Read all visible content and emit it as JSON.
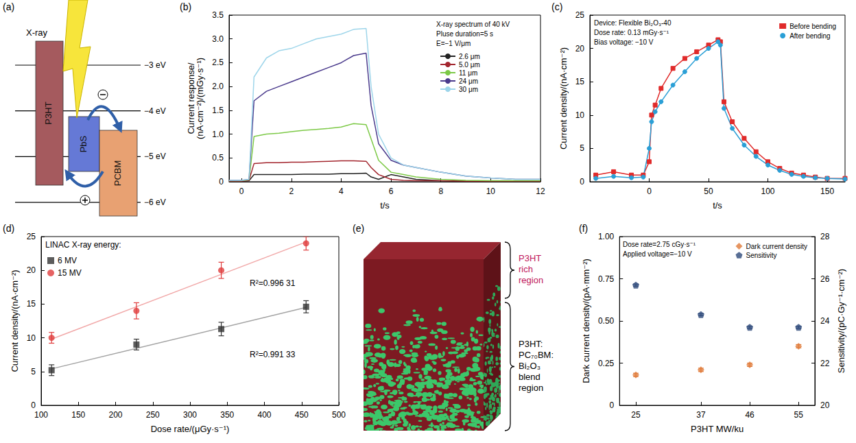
{
  "panel_labels": [
    "(a)",
    "(b)",
    "(c)",
    "(d)",
    "(e)",
    "(f)"
  ],
  "diagram_a": {
    "annotation": "X-ray",
    "materials": [
      "P3HT",
      "PbS",
      "PCBM"
    ],
    "levels": [
      {
        "value": -3,
        "label": "−3 eV"
      },
      {
        "value": -4,
        "label": "−4 eV"
      },
      {
        "value": -5,
        "label": "−5 eV"
      },
      {
        "value": -6,
        "label": "−6 eV"
      }
    ]
  },
  "diagram_e": {
    "regions": [
      "P3HT rich region",
      "P3HT:PC₇₀BM:Bi₂O₃ blend region"
    ]
  },
  "chart_data": [
    {
      "type": "line",
      "x_label": "t/s",
      "y_label": "Current response/(nA·cm⁻²)/(mGy·s⁻¹)",
      "annotations": [
        "X-ray spectrum of 40 kV",
        "Pluse duration=5 s",
        "E=−1 V/μm"
      ],
      "x": [
        -0.5,
        0,
        0.3,
        0.5,
        1,
        1.5,
        2,
        2.5,
        3,
        3.5,
        4,
        4.5,
        5,
        5.2,
        5.5,
        6,
        6.5,
        7,
        8,
        9,
        10,
        11,
        12
      ],
      "series": [
        {
          "name": "2.6 μm",
          "color": "#222222",
          "values": [
            0.01,
            0.01,
            0.02,
            0.15,
            0.15,
            0.15,
            0.15,
            0.16,
            0.16,
            0.16,
            0.17,
            0.17,
            0.18,
            0.1,
            0.05,
            0.15,
            0.1,
            0.05,
            0.02,
            0.01,
            0.01,
            0.01,
            0.01
          ]
        },
        {
          "name": "5.0 μm",
          "color": "#a3262e",
          "values": [
            0.01,
            0.01,
            0.03,
            0.38,
            0.4,
            0.4,
            0.41,
            0.41,
            0.42,
            0.43,
            0.44,
            0.44,
            0.43,
            0.3,
            0.15,
            0.05,
            0.03,
            0.02,
            0.02,
            0.01,
            0.01,
            0.01,
            0.01
          ]
        },
        {
          "name": "11 μm",
          "color": "#7cc946",
          "values": [
            0.02,
            0.02,
            0.04,
            0.95,
            1.0,
            1.02,
            1.05,
            1.08,
            1.1,
            1.12,
            1.15,
            1.22,
            1.2,
            0.9,
            0.45,
            0.2,
            0.15,
            0.1,
            0.05,
            0.03,
            0.02,
            0.02,
            0.02
          ]
        },
        {
          "name": "24 μm",
          "color": "#4a3a8c",
          "values": [
            0.03,
            0.03,
            0.05,
            1.7,
            1.9,
            2.0,
            2.1,
            2.2,
            2.3,
            2.4,
            2.5,
            2.65,
            2.7,
            1.6,
            0.8,
            0.45,
            0.35,
            0.3,
            0.2,
            0.12,
            0.08,
            0.05,
            0.05
          ]
        },
        {
          "name": "30 μm",
          "color": "#9dd5ea",
          "values": [
            0.03,
            0.03,
            0.05,
            2.2,
            2.6,
            2.75,
            2.8,
            2.9,
            3.0,
            3.05,
            3.1,
            3.2,
            3.22,
            2.0,
            1.0,
            0.5,
            0.35,
            0.3,
            0.2,
            0.12,
            0.08,
            0.05,
            0.05
          ]
        }
      ],
      "xlim": [
        -0.5,
        12
      ],
      "xticks": [
        0,
        2,
        4,
        6,
        8,
        10,
        12
      ],
      "ylim": [
        0,
        3.5
      ],
      "yticks": [
        0,
        0.5,
        {
          "value": 1,
          "label": "1.0"
        },
        1.5,
        {
          "value": 2,
          "label": "2.0"
        },
        2.5,
        {
          "value": 3,
          "label": "3.0"
        },
        3.5
      ],
      "legend": "upper right",
      "grid": false
    },
    {
      "type": "line",
      "x_label": "t/s",
      "y_label": "Current density/(nA·cm⁻²)",
      "annotations": [
        "Device: Flexible Bi₂O₃-40",
        "Dose rate: 0.13 mGy·s⁻¹",
        "Bias voltage: −10 V"
      ],
      "x": [
        -45,
        -30,
        -15,
        -5,
        0,
        2,
        5,
        10,
        20,
        30,
        40,
        50,
        58,
        60,
        63,
        70,
        80,
        90,
        100,
        110,
        120,
        130,
        140,
        150,
        165
      ],
      "series": [
        {
          "name": "Before bending",
          "color": "#e02a2a",
          "marker": "square",
          "values": [
            1,
            1.5,
            1,
            1,
            3,
            10,
            11.5,
            14,
            17,
            18.5,
            19.5,
            20.5,
            21.3,
            21,
            12,
            9,
            6.5,
            4.5,
            3,
            2,
            1.3,
            1,
            0.7,
            0.5,
            0.5
          ]
        },
        {
          "name": "After bending",
          "color": "#2a9fd6",
          "marker": "circle",
          "values": [
            0.5,
            0.8,
            0.6,
            0.7,
            5,
            9,
            10.5,
            12,
            14.5,
            16.5,
            18.5,
            20,
            21,
            20.5,
            11,
            8,
            5.5,
            3.8,
            2.5,
            1.7,
            1.1,
            0.8,
            0.6,
            0.5,
            0.4
          ]
        }
      ],
      "xlim": [
        -50,
        165
      ],
      "xticks": [
        0,
        50,
        100,
        150
      ],
      "ylim": [
        0,
        25
      ],
      "yticks": [
        0,
        5,
        10,
        15,
        20,
        25
      ],
      "legend": "upper right",
      "grid": false
    },
    {
      "type": "scatter",
      "x_label": "Dose rate/(μGy·s⁻¹)",
      "y_label": "Current density/(nA·cm⁻²)",
      "legend_title": "LINAC X-ray energy:",
      "x": [
        114,
        228,
        342,
        456
      ],
      "series": [
        {
          "name": "6 MV",
          "color": "#333333",
          "marker": "square",
          "values": [
            5.2,
            9,
            11.3,
            14.6
          ],
          "errors": [
            0.8,
            0.8,
            1.0,
            0.9
          ],
          "fit": {
            "x": [
              114,
              456
            ],
            "values": [
              5.4,
              14.5
            ]
          },
          "fit_label": "R²=0.991 33"
        },
        {
          "name": "15 MV",
          "color": "#e03c3c",
          "marker": "circle",
          "values": [
            10,
            14,
            20,
            24
          ],
          "errors": [
            0.8,
            1.2,
            1.2,
            1.0
          ],
          "fit": {
            "x": [
              114,
              456
            ],
            "values": [
              9.8,
              24.2
            ]
          },
          "fit_label": "R²=0.996 31"
        }
      ],
      "xlim": [
        100,
        500
      ],
      "xticks": [
        100,
        150,
        200,
        250,
        300,
        350,
        400,
        450,
        500
      ],
      "ylim": [
        0,
        25
      ],
      "yticks": [
        0,
        5,
        10,
        15,
        20,
        25
      ],
      "legend": "upper left",
      "grid": false
    },
    {
      "type": "scatter",
      "x_label": "P3HT MW/ku",
      "y_label": "Dark current density/(pA·mm⁻²)",
      "y2_label": "Sensitivity/(pC·Gy⁻¹·cm⁻²)",
      "annotations": [
        "Dose rate=2.75 cGy·s⁻¹",
        "Applied voltage=−10 V"
      ],
      "x": [
        25,
        37,
        46,
        55
      ],
      "series": [
        {
          "name": "Dark current density",
          "color": "#e07b39",
          "marker": "diamond",
          "values": [
            0.18,
            0.21,
            0.24,
            0.35
          ],
          "errors": [
            0.01,
            0.01,
            0.01,
            0.01
          ]
        },
        {
          "name": "Sensitivity",
          "color": "#2e4a7a",
          "marker": "pentagon",
          "axis": "y2",
          "values": [
            25.7,
            24.3,
            23.7,
            23.7
          ],
          "errors": [
            0.05,
            0.05,
            0.05,
            0.05
          ]
        }
      ],
      "xlim": [
        22,
        58
      ],
      "xticks": [
        25,
        37,
        46,
        55
      ],
      "ylim": [
        0,
        1
      ],
      "yticks": [
        0,
        0.25,
        {
          "value": 0.5,
          "label": "0.50"
        },
        0.75,
        {
          "value": 1,
          "label": "1.00"
        }
      ],
      "y2lim": [
        20,
        28
      ],
      "y2ticks": [
        20,
        22,
        24,
        26,
        28
      ],
      "legend": "upper right",
      "grid": false
    }
  ]
}
